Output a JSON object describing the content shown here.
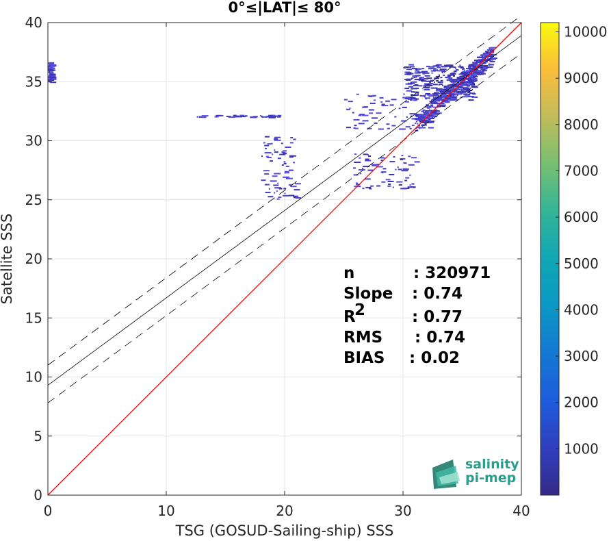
{
  "chart_data": {
    "type": "heatmap",
    "title": "0°≤|LAT|≤ 80°",
    "xlabel": "TSG (GOSUD-Sailing-ship) SSS",
    "ylabel": "Satellite SSS",
    "xlim": [
      0,
      40
    ],
    "ylim": [
      0,
      40
    ],
    "xticks": [
      "0",
      "10",
      "20",
      "30",
      "40"
    ],
    "yticks": [
      "0",
      "5",
      "10",
      "15",
      "20",
      "25",
      "30",
      "35",
      "40"
    ],
    "grid": true,
    "reference_line": {
      "name": "1:1",
      "color": "#ff0000",
      "x": [
        0,
        40
      ],
      "y": [
        0,
        40
      ]
    },
    "fit_line": {
      "slope": 0.74,
      "intercept": 9.3,
      "color": "#000000"
    },
    "fit_band_upper": {
      "slope": 0.74,
      "intercept": 11.0
    },
    "fit_band_lower": {
      "slope": 0.74,
      "intercept": 7.8
    },
    "density_clusters": [
      {
        "x_range": [
          31.0,
          37.5
        ],
        "y_range": [
          31.5,
          37.5
        ],
        "orientation": "diagonal",
        "density": "high"
      },
      {
        "x_range": [
          30.0,
          36.0
        ],
        "y_range": [
          33.5,
          36.5
        ],
        "orientation": "box",
        "density": "medium"
      },
      {
        "x_range": [
          25.0,
          32.5
        ],
        "y_range": [
          31.0,
          34.0
        ],
        "orientation": "box",
        "density": "low"
      },
      {
        "x_range": [
          25.5,
          31.0
        ],
        "y_range": [
          26.0,
          29.0
        ],
        "orientation": "box",
        "density": "low"
      },
      {
        "x_range": [
          12.5,
          19.5
        ],
        "y_range": [
          32.0,
          32.2
        ],
        "orientation": "row",
        "density": "low"
      },
      {
        "x_range": [
          18.0,
          21.0
        ],
        "y_range": [
          25.0,
          30.5
        ],
        "orientation": "box",
        "density": "low"
      },
      {
        "x_range": [
          0.0,
          0.2
        ],
        "y_range": [
          35.0,
          36.7
        ],
        "orientation": "box",
        "density": "low"
      }
    ],
    "colorbar": {
      "range": [
        0,
        10200
      ],
      "ticks": [
        "1000",
        "2000",
        "3000",
        "4000",
        "5000",
        "6000",
        "7000",
        "8000",
        "9000",
        "10000"
      ],
      "colormap": "parula"
    },
    "stats": [
      {
        "label": "n",
        "value": ": 320971"
      },
      {
        "label": "Slope",
        "value": ": 0.74"
      },
      {
        "label": "R",
        "sup": "2",
        "value": ": 0.77"
      },
      {
        "label": "RMS",
        "value": ": 0.74"
      },
      {
        "label": "BIAS",
        "value": ": 0.02"
      }
    ]
  },
  "logo": {
    "line1": "salinity",
    "line2": "pi-mep",
    "color": "#2a9d8f"
  }
}
